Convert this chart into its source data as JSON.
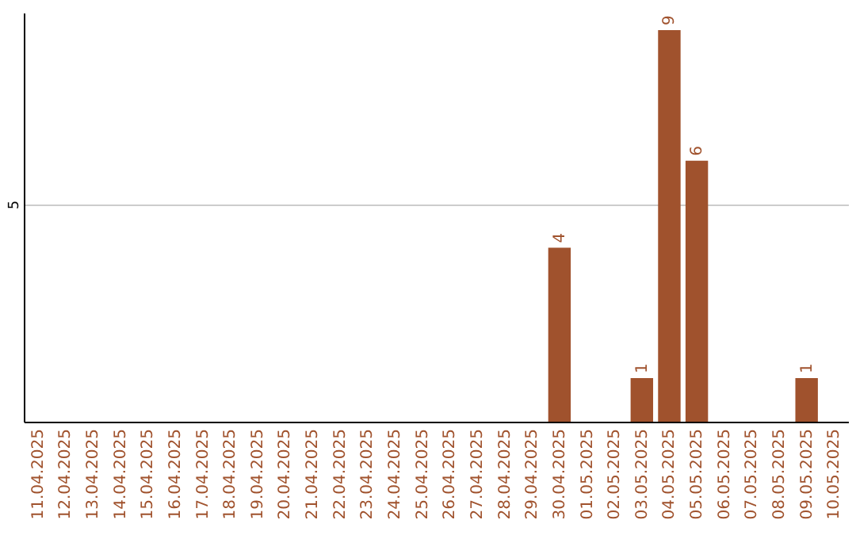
{
  "chart_data": {
    "type": "bar",
    "categories": [
      "11.04.2025",
      "12.04.2025",
      "13.04.2025",
      "14.04.2025",
      "15.04.2025",
      "16.04.2025",
      "17.04.2025",
      "18.04.2025",
      "19.04.2025",
      "20.04.2025",
      "21.04.2025",
      "22.04.2025",
      "23.04.2025",
      "24.04.2025",
      "25.04.2025",
      "26.04.2025",
      "27.04.2025",
      "28.04.2025",
      "29.04.2025",
      "30.04.2025",
      "01.05.2025",
      "02.05.2025",
      "03.05.2025",
      "04.05.2025",
      "05.05.2025",
      "06.05.2025",
      "07.05.2025",
      "08.05.2025",
      "09.05.2025",
      "10.05.2025"
    ],
    "values": [
      null,
      null,
      null,
      null,
      null,
      null,
      null,
      null,
      null,
      null,
      null,
      null,
      null,
      null,
      null,
      null,
      null,
      null,
      null,
      4,
      null,
      null,
      1,
      9,
      6,
      null,
      null,
      null,
      1,
      null
    ],
    "value_labels": [
      null,
      null,
      null,
      null,
      null,
      null,
      null,
      null,
      null,
      null,
      null,
      null,
      null,
      null,
      null,
      null,
      null,
      null,
      null,
      "4",
      null,
      null,
      "1",
      "9",
      "6",
      null,
      null,
      null,
      "1",
      null
    ],
    "color": "#a0522d",
    "ylim": [
      0,
      9.4
    ],
    "yticks": [
      5
    ],
    "grid": "y"
  }
}
